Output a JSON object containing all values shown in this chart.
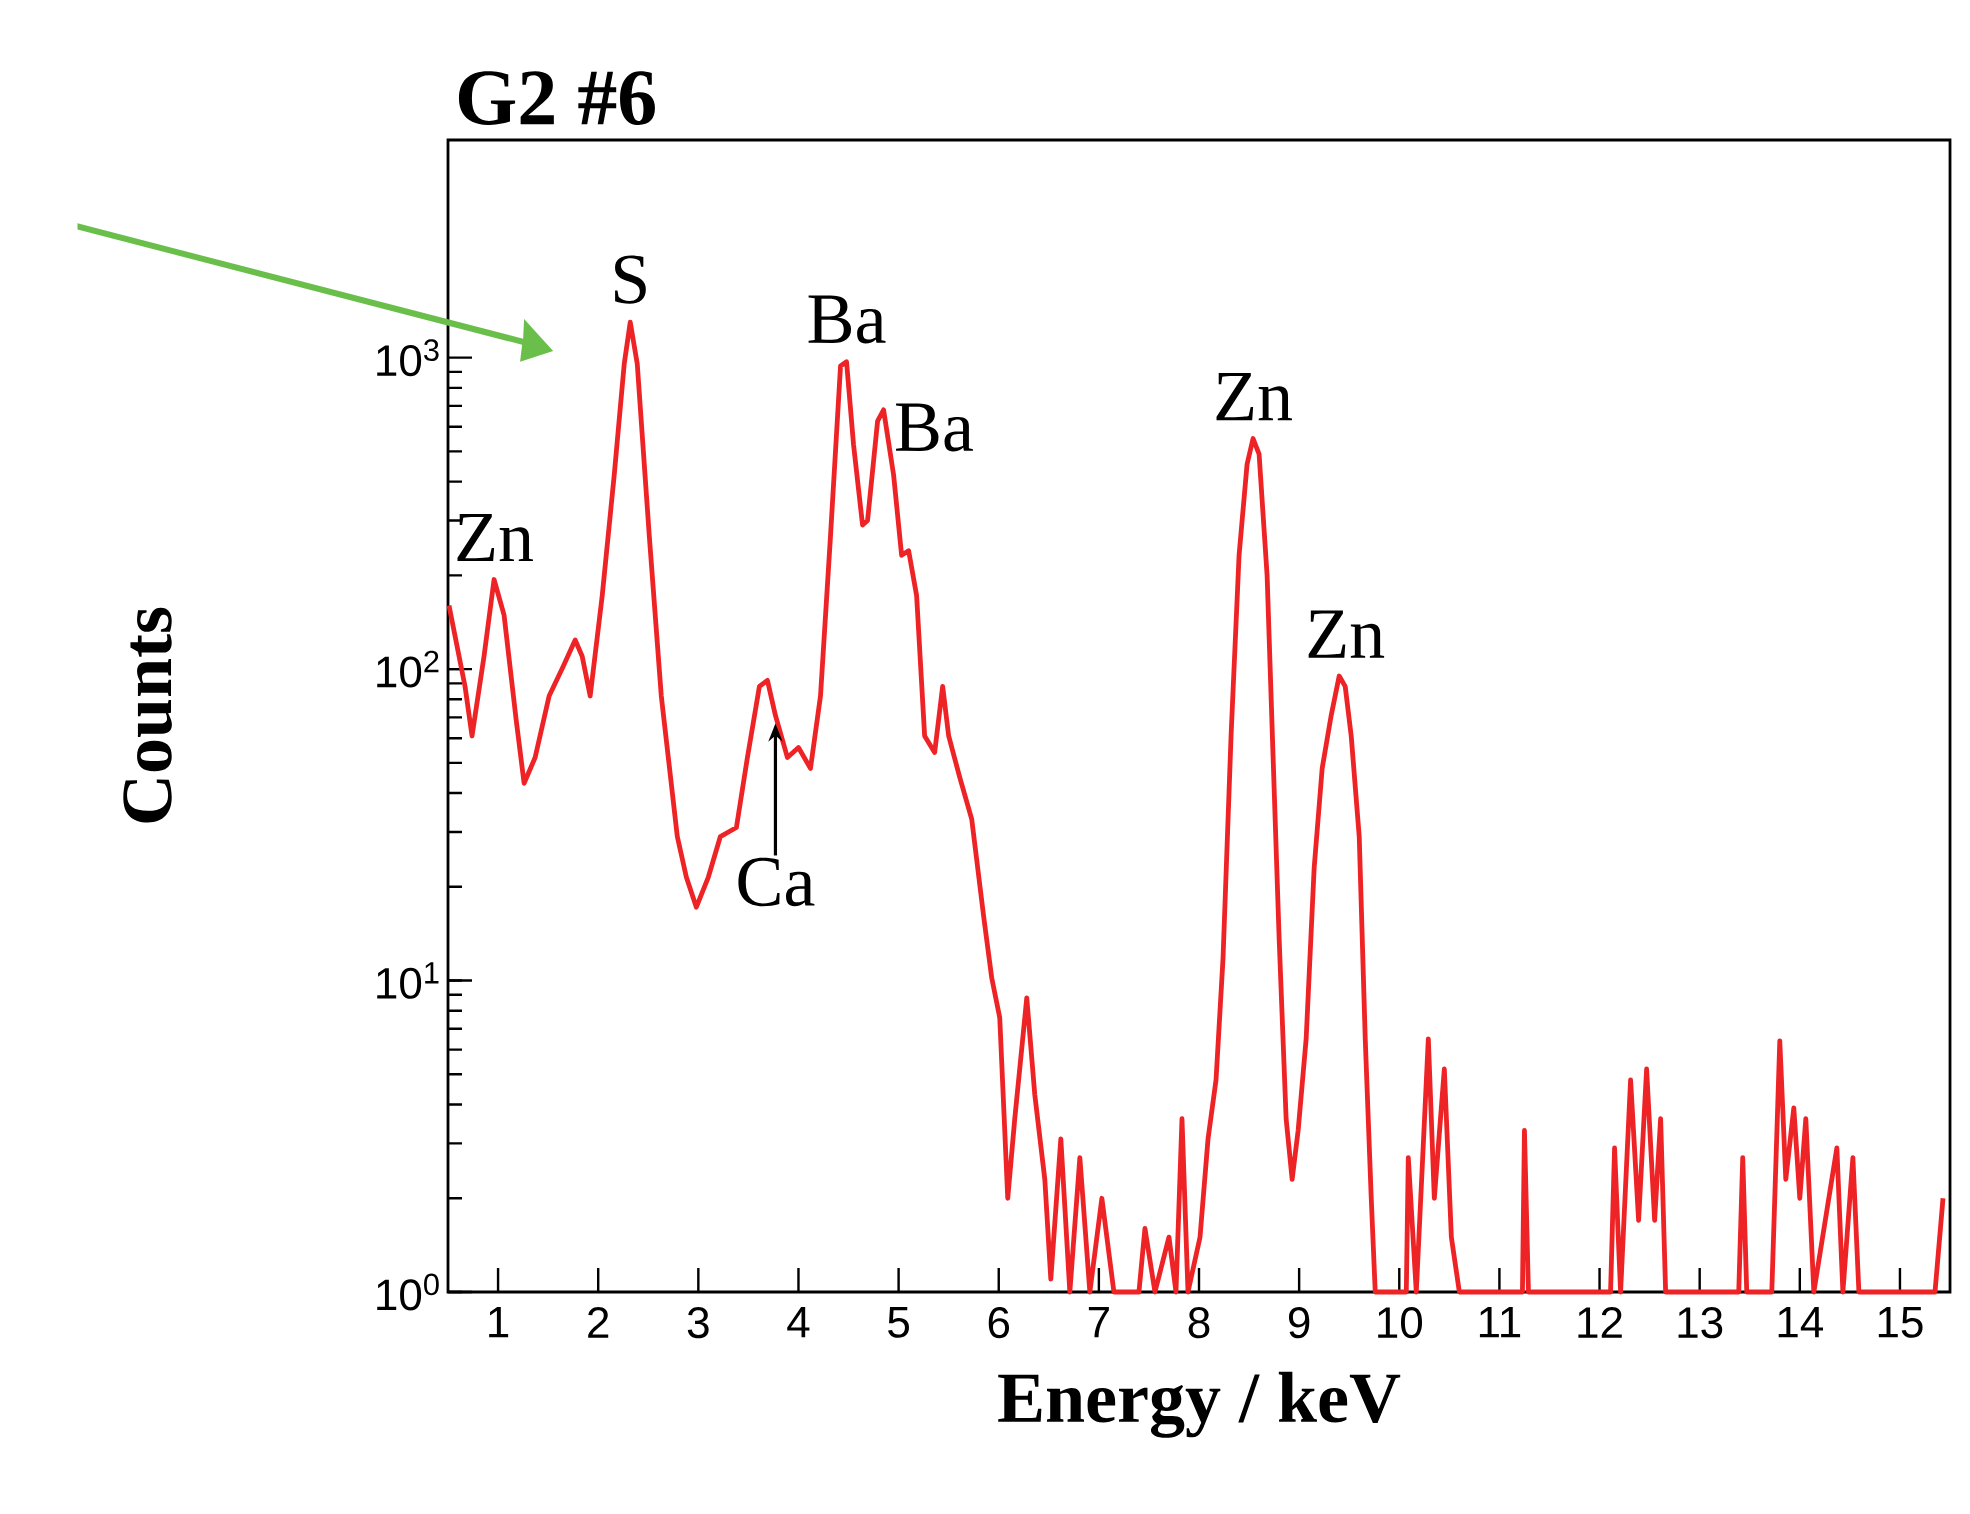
{
  "chart_data": {
    "type": "line",
    "title": "G2 #6",
    "xlabel": "Energy / keV",
    "ylabel": "Counts",
    "log": "y",
    "xlim": [
      0.5,
      15.5
    ],
    "ylim": [
      1,
      5000
    ],
    "xticks": [
      1,
      2,
      3,
      4,
      5,
      6,
      7,
      8,
      9,
      10,
      11,
      12,
      13,
      14,
      15
    ],
    "yticks": [
      {
        "value": 1,
        "label": "10$^{0}$"
      },
      {
        "value": 10,
        "label": "10$^{1}$"
      },
      {
        "value": 100,
        "label": "10$^{2}$"
      },
      {
        "value": 1000,
        "label": "10$^{3}$"
      }
    ],
    "grid": false,
    "marker": "none",
    "line_style": "solid",
    "series": [
      {
        "color": "#ee2326",
        "x": [
          0.51,
          0.67,
          0.74,
          0.86,
          0.96,
          1.06,
          1.18,
          1.26,
          1.37,
          1.51,
          1.65,
          1.77,
          1.84,
          1.92,
          2.04,
          2.16,
          2.26,
          2.32,
          2.39,
          2.51,
          2.63,
          2.79,
          2.88,
          2.98,
          3.1,
          3.22,
          3.38,
          3.49,
          3.61,
          3.69,
          3.77,
          3.89,
          4.0,
          4.12,
          4.22,
          4.32,
          4.42,
          4.48,
          4.55,
          4.64,
          4.69,
          4.79,
          4.85,
          4.95,
          5.03,
          5.1,
          5.18,
          5.26,
          5.36,
          5.44,
          5.5,
          5.61,
          5.73,
          5.85,
          5.93,
          6.01,
          6.09,
          6.16,
          6.28,
          6.36,
          6.46,
          6.52,
          6.62,
          6.71,
          6.81,
          6.91,
          7.03,
          7.15,
          7.4,
          7.46,
          7.56,
          7.7,
          7.77,
          7.83,
          7.89,
          8.01,
          8.09,
          8.17,
          8.24,
          8.32,
          8.4,
          8.48,
          8.54,
          8.6,
          8.68,
          8.74,
          8.8,
          8.87,
          8.93,
          8.99,
          9.07,
          9.15,
          9.23,
          9.32,
          9.4,
          9.46,
          9.52,
          9.6,
          9.66,
          9.72,
          9.76,
          10.07,
          10.09,
          10.17,
          10.29,
          10.35,
          10.45,
          10.52,
          10.6,
          11.23,
          11.25,
          11.29,
          12.11,
          12.15,
          12.21,
          12.31,
          12.39,
          12.47,
          12.55,
          12.61,
          12.66,
          13.39,
          13.43,
          13.47,
          13.72,
          13.8,
          13.86,
          13.94,
          14.0,
          14.06,
          14.14,
          14.37,
          14.43,
          14.53,
          14.59,
          15.35,
          15.43
        ],
        "values": [
          160,
          88,
          61,
          110,
          194,
          149,
          69,
          43,
          52,
          82,
          102,
          124,
          110,
          82,
          172,
          420,
          955,
          1300,
          955,
          268,
          82,
          29,
          21.5,
          17.2,
          21.5,
          29,
          31,
          52,
          88,
          92,
          71,
          52,
          56,
          48,
          82,
          268,
          940,
          970,
          525,
          290,
          300,
          625,
          680,
          420,
          232,
          240,
          172,
          61,
          54,
          88,
          61,
          45,
          33,
          16,
          10.2,
          7.6,
          2.0,
          3.6,
          8.8,
          4.3,
          2.3,
          1.1,
          3.1,
          1,
          2.7,
          1,
          2,
          1,
          1,
          1.6,
          1,
          1.5,
          1,
          3.6,
          1,
          1.5,
          3.1,
          4.8,
          11.8,
          61,
          232,
          455,
          550,
          490,
          200,
          52,
          13.7,
          3.6,
          2.3,
          3.3,
          6.5,
          23,
          48,
          71,
          95,
          88,
          61,
          29,
          6.5,
          2.0,
          1,
          1,
          2.7,
          1,
          6.5,
          2.0,
          5.2,
          1.5,
          1,
          1,
          3.3,
          1,
          1,
          2.9,
          1,
          4.8,
          1.7,
          5.2,
          1.7,
          3.6,
          1,
          1,
          2.7,
          1,
          1,
          6.4,
          2.3,
          3.9,
          2,
          3.6,
          1,
          2.9,
          1,
          2.7,
          1,
          1,
          2
        ]
      }
    ],
    "annotations": [
      {
        "text": "Zn",
        "x": 0.96,
        "y": 194
      },
      {
        "text": "S",
        "x": 2.32,
        "y": 1300
      },
      {
        "text": "Ba",
        "x": 4.48,
        "y": 970
      },
      {
        "text": "Ba",
        "x": 4.85,
        "y": 680
      },
      {
        "text": "Ca",
        "x": 3.77,
        "y": 71
      },
      {
        "text": "Zn",
        "x": 8.54,
        "y": 550
      },
      {
        "text": "Zn",
        "x": 9.46,
        "y": 95
      }
    ]
  }
}
